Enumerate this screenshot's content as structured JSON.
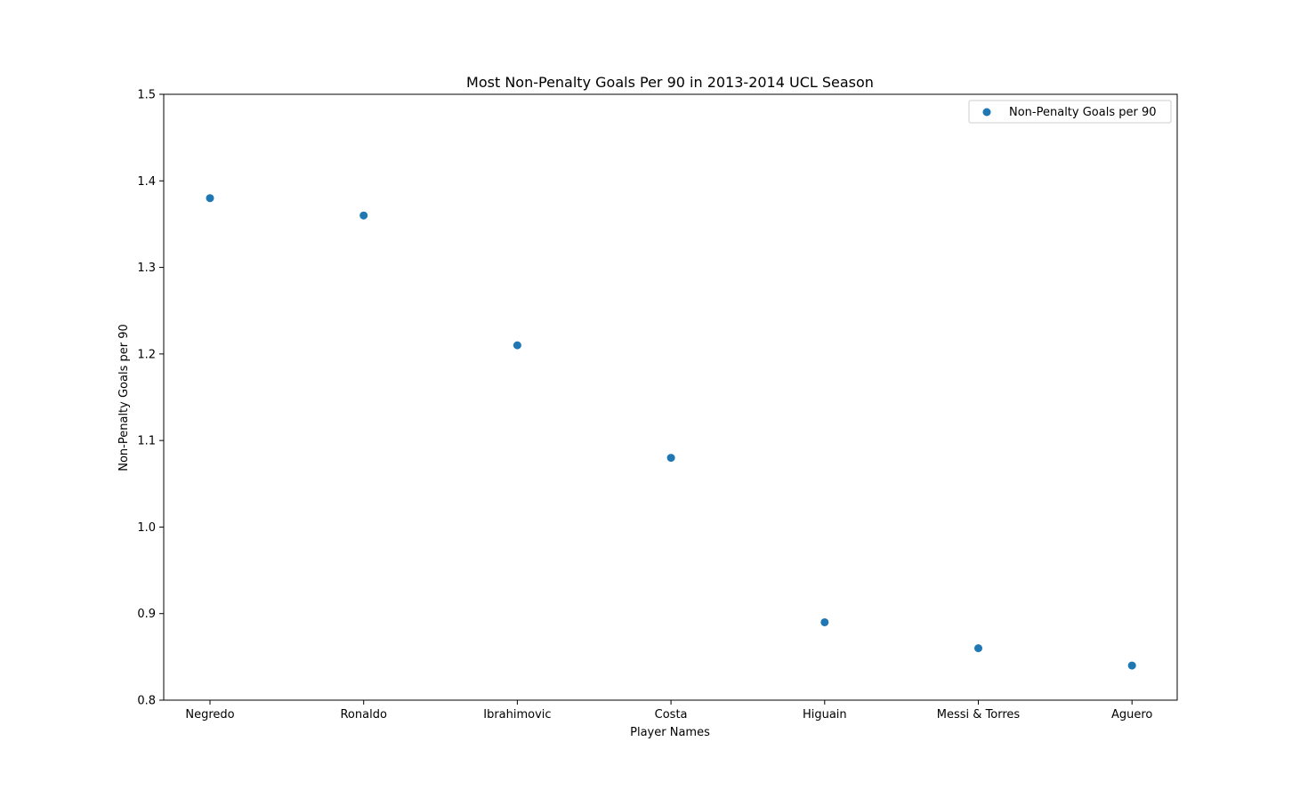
{
  "chart_data": {
    "type": "scatter",
    "title": "Most Non-Penalty Goals Per 90 in 2013-2014 UCL Season",
    "xlabel": "Player Names",
    "ylabel": "Non-Penalty Goals per 90",
    "categories": [
      "Negredo",
      "Ronaldo",
      "Ibrahimovic",
      "Costa",
      "Higuain",
      "Messi & Torres",
      "Aguero"
    ],
    "series": [
      {
        "name": "Non-Penalty Goals per 90",
        "values": [
          1.38,
          1.36,
          1.21,
          1.08,
          0.89,
          0.86,
          0.84
        ],
        "color": "#1f77b4"
      }
    ],
    "ylim": [
      0.8,
      1.5
    ],
    "yticks": [
      "0.8",
      "0.9",
      "1.0",
      "1.1",
      "1.2",
      "1.3",
      "1.4",
      "1.5"
    ],
    "grid": false,
    "legend": "top-right"
  }
}
